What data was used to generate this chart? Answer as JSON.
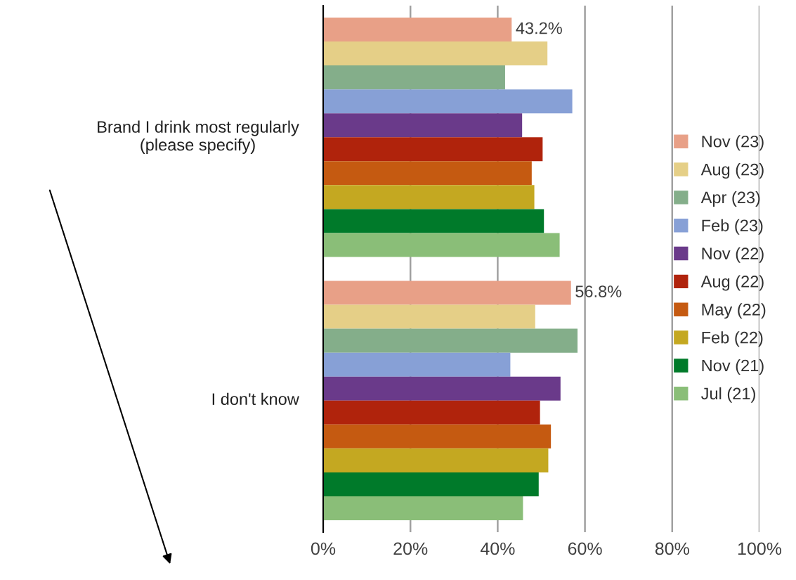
{
  "chart_data": {
    "type": "bar",
    "orientation": "horizontal",
    "categories": [
      "Brand I drink most regularly\n(please specify)",
      "I don't know"
    ],
    "series": [
      {
        "name": "Nov (23)",
        "color": "#e8a087",
        "values": [
          43.2,
          56.8
        ],
        "value_labels": [
          "43.2%",
          "56.8%"
        ]
      },
      {
        "name": "Aug (23)",
        "color": "#e5cf87",
        "values": [
          51.4,
          48.6
        ]
      },
      {
        "name": "Apr (23)",
        "color": "#84ae8a",
        "values": [
          41.7,
          58.3
        ]
      },
      {
        "name": "Feb (23)",
        "color": "#87a0d6",
        "values": [
          57.1,
          42.9
        ]
      },
      {
        "name": "Nov (22)",
        "color": "#6a3a8a",
        "values": [
          45.6,
          54.4
        ]
      },
      {
        "name": "Aug (22)",
        "color": "#b0230c",
        "values": [
          50.3,
          49.7
        ]
      },
      {
        "name": "May (22)",
        "color": "#c55a11",
        "values": [
          47.8,
          52.2
        ]
      },
      {
        "name": "Feb (22)",
        "color": "#c4a821",
        "values": [
          48.4,
          51.6
        ]
      },
      {
        "name": "Nov (21)",
        "color": "#007a2a",
        "values": [
          50.6,
          49.4
        ]
      },
      {
        "name": "Jul (21)",
        "color": "#8abe78",
        "values": [
          54.2,
          45.8
        ]
      }
    ],
    "xlim": [
      0,
      100
    ],
    "xticks": [
      {
        "value": 0,
        "label": "0%"
      },
      {
        "value": 20,
        "label": "20%"
      },
      {
        "value": 40,
        "label": "40%"
      },
      {
        "value": 60,
        "label": "60%"
      },
      {
        "value": 80,
        "label": "80%"
      },
      {
        "value": 100,
        "label": "100%"
      }
    ],
    "grid": "x",
    "legend": "right"
  }
}
